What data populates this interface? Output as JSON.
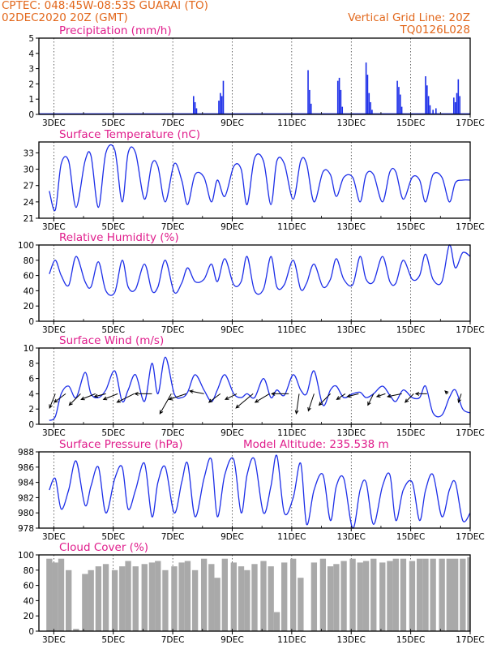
{
  "header": {
    "org_location": "CPTEC:   048:45W-08:53S   GUARAI (TO)",
    "start_time": "02DEC2020 20Z (GMT)",
    "grid_note": "Vertical Grid Line: 20Z",
    "model_code": "TQ0126L028"
  },
  "colors": {
    "header": "#e2671b",
    "titles": "#e01e8c",
    "series": "#1c2ee8",
    "cloud": "#a9a9a9"
  },
  "chart_data": [
    {
      "type": "bar",
      "title": "Precipitation (mm/h)",
      "ylim": [
        0,
        5
      ],
      "yticks": [
        0,
        1,
        2,
        3,
        4,
        5
      ],
      "x_ticks": [
        "3DEC",
        "5DEC",
        "7DEC",
        "9DEC",
        "11DEC",
        "13DEC",
        "15DEC",
        "17DEC"
      ],
      "x_ticks_day": [
        3,
        5,
        7,
        9,
        11,
        13,
        15,
        17
      ],
      "grid": "vertical-dotted",
      "x": [
        7.7,
        7.75,
        7.8,
        8.55,
        8.6,
        8.65,
        8.7,
        11.55,
        11.6,
        11.65,
        12.55,
        12.6,
        12.65,
        12.7,
        13.5,
        13.55,
        13.6,
        13.65,
        13.7,
        14.55,
        14.6,
        14.65,
        14.7,
        15.5,
        15.55,
        15.6,
        15.65,
        15.75,
        15.85,
        16.45,
        16.5,
        16.55,
        16.6,
        16.65
      ],
      "values": [
        1.2,
        0.8,
        0.4,
        0.9,
        1.4,
        1.2,
        2.2,
        2.9,
        1.6,
        0.7,
        2.2,
        2.4,
        1.6,
        0.5,
        3.4,
        2.6,
        1.4,
        0.8,
        0.3,
        2.2,
        1.8,
        1.3,
        0.5,
        2.5,
        1.9,
        1.2,
        0.6,
        0.3,
        0.4,
        1.1,
        0.8,
        1.4,
        2.3,
        1.2
      ]
    },
    {
      "type": "line",
      "title": "Surface Temperature (nC)",
      "ylim": [
        21,
        35
      ],
      "yticks": [
        21,
        24,
        27,
        30,
        33
      ],
      "x_ticks": [
        "3DEC",
        "5DEC",
        "7DEC",
        "9DEC",
        "11DEC",
        "13DEC",
        "15DEC",
        "17DEC"
      ],
      "x_ticks_day": [
        3,
        5,
        7,
        9,
        11,
        13,
        15,
        17
      ],
      "grid": "vertical-dotted",
      "series": [
        {
          "x": [
            2.85,
            3.05,
            3.25,
            3.5,
            3.75,
            4.05,
            4.25,
            4.5,
            4.75,
            5.05,
            5.3,
            5.5,
            5.75,
            6.05,
            6.3,
            6.5,
            6.75,
            7.05,
            7.3,
            7.5,
            7.75,
            8.05,
            8.3,
            8.5,
            8.75,
            9.05,
            9.3,
            9.5,
            9.75,
            10.05,
            10.3,
            10.5,
            10.75,
            11.05,
            11.3,
            11.5,
            11.75,
            12.05,
            12.3,
            12.5,
            12.75,
            13.05,
            13.3,
            13.5,
            13.75,
            14.05,
            14.3,
            14.5,
            14.75,
            15.05,
            15.3,
            15.5,
            15.75,
            16.05,
            16.3,
            16.5,
            16.75,
            17.0
          ],
          "values": [
            26.0,
            22.5,
            31.0,
            31.5,
            23.0,
            31.5,
            32.5,
            23.0,
            33.0,
            33.5,
            24.0,
            33.0,
            33.0,
            24.5,
            31.0,
            30.5,
            24.0,
            31.0,
            28.0,
            23.5,
            29.0,
            28.5,
            24.0,
            28.0,
            25.0,
            30.5,
            30.0,
            23.5,
            32.0,
            31.5,
            23.5,
            31.5,
            31.0,
            24.5,
            31.5,
            31.0,
            24.0,
            29.5,
            29.0,
            25.0,
            28.5,
            28.5,
            24.0,
            29.0,
            29.0,
            24.0,
            29.5,
            29.5,
            24.5,
            28.5,
            28.0,
            24.0,
            29.0,
            28.5,
            24.0,
            27.5,
            28.0,
            28.0
          ]
        }
      ]
    },
    {
      "type": "line",
      "title": "Relative Humidity (%)",
      "ylim": [
        0,
        100
      ],
      "yticks": [
        0,
        20,
        40,
        60,
        80,
        100
      ],
      "x_ticks": [
        "3DEC",
        "5DEC",
        "7DEC",
        "9DEC",
        "11DEC",
        "13DEC",
        "15DEC",
        "17DEC"
      ],
      "x_ticks_day": [
        3,
        5,
        7,
        9,
        11,
        13,
        15,
        17
      ],
      "grid": "vertical-dotted",
      "series": [
        {
          "x": [
            2.85,
            3.05,
            3.25,
            3.5,
            3.75,
            4.05,
            4.25,
            4.5,
            4.75,
            5.05,
            5.3,
            5.5,
            5.75,
            6.05,
            6.3,
            6.5,
            6.75,
            7.05,
            7.3,
            7.5,
            7.75,
            8.05,
            8.3,
            8.5,
            8.75,
            9.05,
            9.3,
            9.5,
            9.75,
            10.05,
            10.3,
            10.5,
            10.75,
            11.05,
            11.3,
            11.5,
            11.75,
            12.05,
            12.3,
            12.5,
            12.75,
            13.05,
            13.3,
            13.5,
            13.75,
            14.05,
            14.3,
            14.5,
            14.75,
            15.05,
            15.3,
            15.5,
            15.75,
            16.05,
            16.3,
            16.5,
            16.75,
            17.0
          ],
          "values": [
            62,
            80,
            60,
            47,
            85,
            52,
            45,
            78,
            40,
            38,
            80,
            45,
            42,
            75,
            40,
            45,
            80,
            38,
            50,
            70,
            52,
            55,
            75,
            52,
            82,
            48,
            52,
            85,
            40,
            42,
            85,
            45,
            48,
            80,
            42,
            50,
            75,
            45,
            55,
            82,
            55,
            48,
            85,
            55,
            52,
            85,
            52,
            50,
            80,
            55,
            60,
            88,
            55,
            52,
            100,
            70,
            90,
            85
          ]
        }
      ]
    },
    {
      "type": "line",
      "title": "Surface Wind (m/s)",
      "ylim": [
        0,
        10
      ],
      "yticks": [
        0,
        2,
        4,
        6,
        8,
        10
      ],
      "x_ticks": [
        "3DEC",
        "5DEC",
        "7DEC",
        "9DEC",
        "11DEC",
        "13DEC",
        "15DEC",
        "17DEC"
      ],
      "x_ticks_day": [
        3,
        5,
        7,
        9,
        11,
        13,
        15,
        17
      ],
      "grid": "vertical-dotted",
      "series": [
        {
          "x": [
            2.85,
            3.05,
            3.25,
            3.5,
            3.75,
            4.05,
            4.25,
            4.5,
            4.75,
            5.05,
            5.3,
            5.5,
            5.75,
            6.05,
            6.3,
            6.5,
            6.75,
            7.05,
            7.3,
            7.5,
            7.75,
            8.05,
            8.3,
            8.5,
            8.75,
            9.05,
            9.3,
            9.5,
            9.75,
            10.05,
            10.3,
            10.5,
            10.75,
            11.05,
            11.3,
            11.5,
            11.75,
            12.05,
            12.3,
            12.5,
            12.75,
            13.05,
            13.3,
            13.5,
            13.75,
            14.05,
            14.3,
            14.5,
            14.75,
            15.05,
            15.3,
            15.5,
            15.75,
            16.05,
            16.3,
            16.5,
            16.75,
            17.0
          ],
          "values": [
            0.5,
            1.0,
            4.0,
            5.0,
            3.5,
            6.8,
            4.0,
            3.5,
            4.5,
            7.0,
            3.0,
            4.5,
            6.5,
            3.0,
            8.0,
            4.0,
            8.8,
            4.0,
            3.5,
            4.2,
            6.5,
            4.5,
            3.0,
            4.5,
            6.5,
            4.0,
            3.5,
            4.0,
            3.5,
            6.0,
            3.5,
            4.5,
            3.8,
            6.5,
            4.5,
            4.0,
            7.0,
            2.5,
            4.5,
            5.0,
            3.5,
            4.0,
            4.2,
            3.5,
            4.0,
            5.0,
            3.8,
            3.0,
            4.5,
            3.5,
            3.5,
            5.0,
            1.5,
            1.2,
            3.5,
            4.5,
            2.0,
            1.5
          ]
        }
      ],
      "wind_vectors": [
        {
          "x": 3.05,
          "u": -1,
          "v": -2.5
        },
        {
          "x": 3.4,
          "u": -2,
          "v": -1.5
        },
        {
          "x": 3.9,
          "u": -2,
          "v": -2
        },
        {
          "x": 4.4,
          "u": -2.5,
          "v": -1
        },
        {
          "x": 4.75,
          "u": -2,
          "v": -0.5
        },
        {
          "x": 5.15,
          "u": -2.5,
          "v": -1
        },
        {
          "x": 5.7,
          "u": -3,
          "v": -1.5
        },
        {
          "x": 6.3,
          "u": -3,
          "v": 0
        },
        {
          "x": 6.95,
          "u": -2,
          "v": -3.5
        },
        {
          "x": 7.45,
          "u": -3,
          "v": -1
        },
        {
          "x": 8.05,
          "u": -2.5,
          "v": 0.5
        },
        {
          "x": 8.6,
          "u": -2,
          "v": -1.5
        },
        {
          "x": 9.15,
          "u": -2,
          "v": -1
        },
        {
          "x": 9.7,
          "u": -3,
          "v": -2.5
        },
        {
          "x": 10.25,
          "u": -2.5,
          "v": -1.5
        },
        {
          "x": 10.9,
          "u": -3,
          "v": 0
        },
        {
          "x": 11.25,
          "u": -0.5,
          "v": -3.5
        },
        {
          "x": 11.75,
          "u": -1,
          "v": -3
        },
        {
          "x": 12.3,
          "u": -2,
          "v": -2
        },
        {
          "x": 12.8,
          "u": -1.5,
          "v": -1
        },
        {
          "x": 13.25,
          "u": -2,
          "v": -0.5
        },
        {
          "x": 13.75,
          "u": -1,
          "v": -2
        },
        {
          "x": 14.15,
          "u": -1.5,
          "v": -0.5
        },
        {
          "x": 14.7,
          "u": -2.5,
          "v": -0.5
        },
        {
          "x": 15.1,
          "u": -1.5,
          "v": -1.5
        },
        {
          "x": 15.55,
          "u": -2,
          "v": 0
        },
        {
          "x": 16.25,
          "u": -0.5,
          "v": 0.5
        },
        {
          "x": 16.7,
          "u": -0.5,
          "v": -1.5
        }
      ]
    },
    {
      "type": "line",
      "title": "Surface Pressure (hPa)",
      "annotation": "Model Altitude: 235.538 m",
      "ylim": [
        978,
        988
      ],
      "yticks": [
        978,
        980,
        982,
        984,
        986,
        988
      ],
      "x_ticks": [
        "3DEC",
        "5DEC",
        "7DEC",
        "9DEC",
        "11DEC",
        "13DEC",
        "15DEC",
        "17DEC"
      ],
      "x_ticks_day": [
        3,
        5,
        7,
        9,
        11,
        13,
        15,
        17
      ],
      "grid": "vertical-dotted",
      "series": [
        {
          "x": [
            2.85,
            3.05,
            3.25,
            3.5,
            3.75,
            4.05,
            4.25,
            4.5,
            4.75,
            5.05,
            5.3,
            5.5,
            5.75,
            6.05,
            6.3,
            6.5,
            6.75,
            7.05,
            7.3,
            7.5,
            7.75,
            8.05,
            8.3,
            8.5,
            8.75,
            9.05,
            9.3,
            9.5,
            9.75,
            10.05,
            10.3,
            10.5,
            10.75,
            11.05,
            11.3,
            11.5,
            11.75,
            12.05,
            12.3,
            12.5,
            12.75,
            13.05,
            13.3,
            13.5,
            13.75,
            14.05,
            14.3,
            14.5,
            14.75,
            15.05,
            15.3,
            15.5,
            15.75,
            16.05,
            16.3,
            16.5,
            16.75,
            17.0
          ],
          "values": [
            983.0,
            984.5,
            980.5,
            983.0,
            986.8,
            981.0,
            983.5,
            986.0,
            980.0,
            984.5,
            986.0,
            980.5,
            983.0,
            986.5,
            979.5,
            984.0,
            986.0,
            980.0,
            984.0,
            986.5,
            979.5,
            984.5,
            987.0,
            979.5,
            985.0,
            987.0,
            980.0,
            985.0,
            987.0,
            980.0,
            983.5,
            987.5,
            980.0,
            982.0,
            986.5,
            978.5,
            983.0,
            985.0,
            979.0,
            983.5,
            984.5,
            978.0,
            983.0,
            984.0,
            978.5,
            983.5,
            985.0,
            979.0,
            983.0,
            984.0,
            979.0,
            983.0,
            985.0,
            979.5,
            983.0,
            984.0,
            979.0,
            980.0
          ]
        }
      ]
    },
    {
      "type": "bar",
      "title": "Cloud Cover (%)",
      "ylim": [
        0,
        100
      ],
      "yticks": [
        0,
        20,
        40,
        60,
        80,
        100
      ],
      "x_ticks": [
        "3DEC",
        "5DEC",
        "7DEC",
        "9DEC",
        "11DEC",
        "13DEC",
        "15DEC",
        "17DEC"
      ],
      "x_ticks_day": [
        3,
        5,
        7,
        9,
        11,
        13,
        15,
        17
      ],
      "grid": "vertical-dotted",
      "x": [
        2.85,
        3.05,
        3.25,
        3.5,
        3.75,
        4.05,
        4.25,
        4.5,
        4.75,
        5.05,
        5.3,
        5.5,
        5.75,
        6.05,
        6.3,
        6.5,
        6.75,
        7.05,
        7.3,
        7.5,
        7.75,
        8.05,
        8.3,
        8.5,
        8.75,
        9.05,
        9.3,
        9.5,
        9.75,
        10.05,
        10.3,
        10.5,
        10.75,
        11.05,
        11.3,
        11.5,
        11.75,
        12.05,
        12.3,
        12.5,
        12.75,
        13.05,
        13.3,
        13.5,
        13.75,
        14.05,
        14.3,
        14.5,
        14.75,
        15.05,
        15.3,
        15.5,
        15.75,
        16.05,
        16.3,
        16.5,
        16.75,
        17.0
      ],
      "values": [
        95,
        90,
        95,
        80,
        3,
        75,
        80,
        85,
        88,
        80,
        85,
        92,
        85,
        88,
        90,
        92,
        80,
        85,
        90,
        92,
        80,
        95,
        88,
        70,
        95,
        90,
        85,
        80,
        88,
        92,
        85,
        25,
        90,
        95,
        70,
        0,
        90,
        95,
        85,
        88,
        92,
        95,
        90,
        92,
        95,
        90,
        92,
        95,
        95,
        92,
        95,
        95,
        95,
        95,
        95,
        95,
        95,
        97
      ]
    }
  ]
}
